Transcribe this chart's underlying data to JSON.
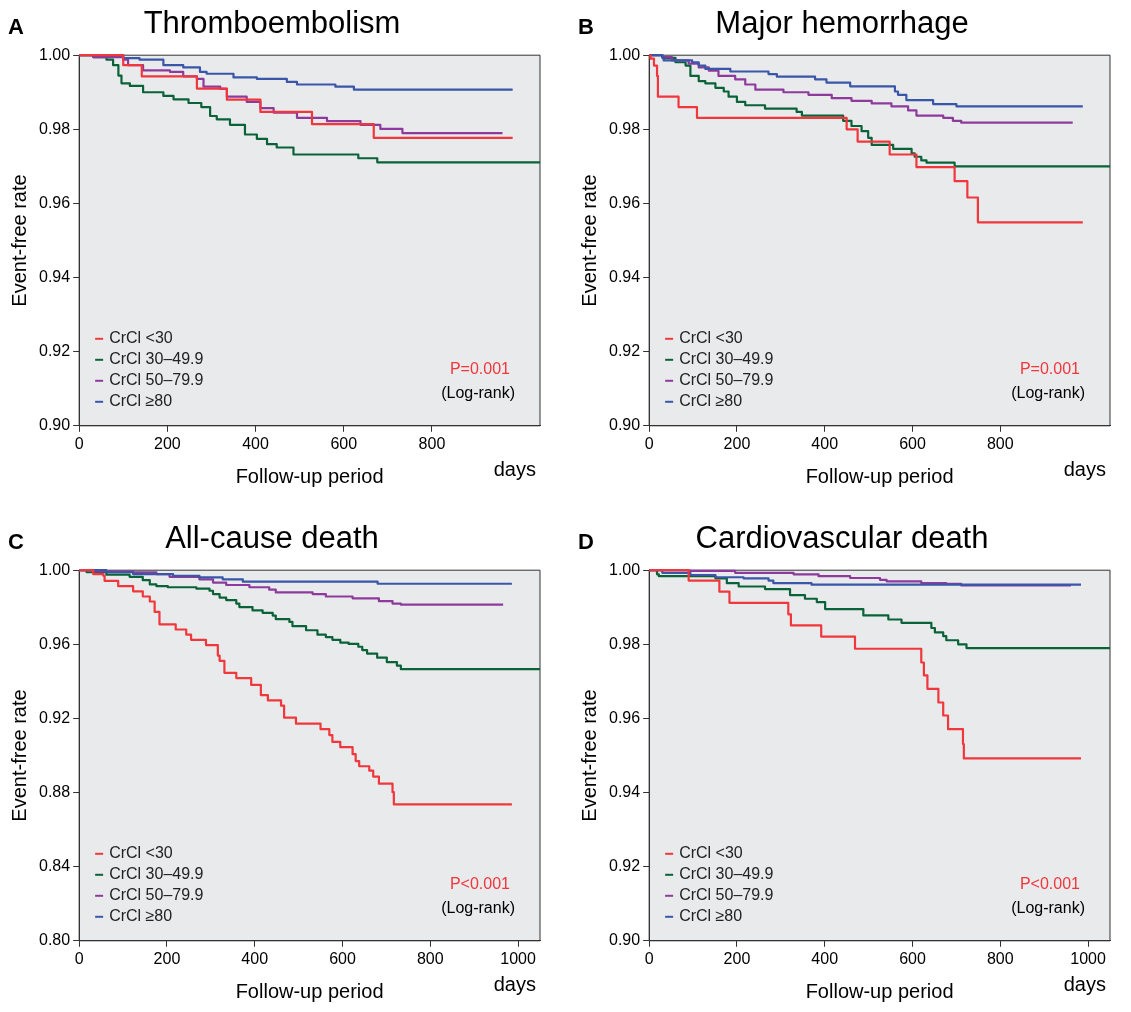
{
  "chart_data": [
    {
      "type": "step",
      "title": "Thromboembolism",
      "xlabel": "Follow-up period",
      "ylabel": "Event-free rate",
      "xlim": [
        0,
        1045
      ],
      "ylim": [
        0.9,
        1.0
      ],
      "xticks": [
        0,
        200,
        400,
        600,
        800
      ],
      "yticks": [
        {
          "value": 0.9,
          "label": "0.90"
        },
        {
          "value": 0.92,
          "label": "0.92"
        },
        {
          "value": 0.94,
          "label": "0.94"
        },
        {
          "value": 0.96,
          "label": "0.96"
        },
        {
          "value": 0.98,
          "label": "0.98"
        },
        {
          "value": 1.0,
          "label": "1.00"
        }
      ],
      "grid": false,
      "legend": "bottom left",
      "marker": "none",
      "line_style": "solid",
      "annotations": [
        "A",
        "P=0.001",
        "(Log-rank)",
        "days"
      ],
      "series": [
        {
          "name": "CrCl <30",
          "color": "#f0373c",
          "x": [
            0,
            100,
            142,
            267,
            335,
            411,
            528,
            668,
            983
          ],
          "values": [
            1.0,
            0.9973,
            0.9943,
            0.991,
            0.988,
            0.9847,
            0.9814,
            0.9777,
            0.9777
          ]
        },
        {
          "name": "CrCl 30–49.9",
          "color": "#0a6338",
          "x": [
            0,
            32,
            62,
            77,
            89,
            96,
            115,
            145,
            191,
            214,
            248,
            277,
            297,
            312,
            342,
            376,
            403,
            426,
            448,
            486,
            633,
            676,
            1045
          ],
          "values": [
            1.0,
            0.9995,
            0.9988,
            0.9973,
            0.9945,
            0.9924,
            0.9917,
            0.99,
            0.989,
            0.9881,
            0.9871,
            0.986,
            0.9836,
            0.9827,
            0.9812,
            0.9786,
            0.9774,
            0.976,
            0.9751,
            0.9732,
            0.9722,
            0.9711,
            0.9711
          ]
        },
        {
          "name": "CrCl 50–79.9",
          "color": "#8e3a9c",
          "x": [
            0,
            32,
            100,
            111,
            145,
            206,
            236,
            267,
            282,
            320,
            335,
            380,
            411,
            441,
            494,
            562,
            638,
            683,
            733,
            960
          ],
          "values": [
            1.0,
            0.9995,
            0.9988,
            0.9973,
            0.9959,
            0.9955,
            0.9943,
            0.9936,
            0.9915,
            0.9909,
            0.9888,
            0.9874,
            0.9857,
            0.9845,
            0.9831,
            0.9822,
            0.9812,
            0.9801,
            0.979,
            0.979
          ]
        },
        {
          "name": "CrCl ≥80",
          "color": "#3a56a8",
          "x": [
            0,
            100,
            137,
            191,
            236,
            274,
            289,
            350,
            403,
            471,
            494,
            581,
            623,
            725,
            983
          ],
          "values": [
            1.0,
            0.9992,
            0.9988,
            0.9973,
            0.9967,
            0.9955,
            0.995,
            0.994,
            0.9936,
            0.9928,
            0.9921,
            0.9915,
            0.9907,
            0.9907,
            0.9907
          ]
        }
      ]
    },
    {
      "type": "step",
      "title": "Major hemorrhage",
      "xlabel": "Follow-up period",
      "ylabel": "Event-free rate",
      "xlim": [
        0,
        1050
      ],
      "ylim": [
        0.9,
        1.0
      ],
      "xticks": [
        0,
        200,
        400,
        600,
        800
      ],
      "yticks": [
        {
          "value": 0.9,
          "label": "0.90"
        },
        {
          "value": 0.92,
          "label": "0.92"
        },
        {
          "value": 0.94,
          "label": "0.94"
        },
        {
          "value": 0.96,
          "label": "0.96"
        },
        {
          "value": 0.98,
          "label": "0.98"
        },
        {
          "value": 1.0,
          "label": "1.00"
        }
      ],
      "grid": false,
      "legend": "bottom left",
      "marker": "none",
      "line_style": "solid",
      "annotations": [
        "B",
        "P=0.001",
        "(Log-rank)",
        "days"
      ],
      "series": [
        {
          "name": "CrCl <30",
          "color": "#f0373c",
          "x": [
            0,
            3,
            11,
            18,
            20,
            67,
            109,
            450,
            475,
            548,
            609,
            696,
            725,
            749,
            988
          ],
          "values": [
            1.0,
            0.9991,
            0.9972,
            0.9944,
            0.9888,
            0.986,
            0.9831,
            0.98,
            0.9767,
            0.9732,
            0.9698,
            0.966,
            0.9616,
            0.9549,
            0.9549
          ]
        },
        {
          "name": "CrCl 30–49.9",
          "color": "#0a6338",
          "x": [
            0,
            30,
            60,
            83,
            94,
            113,
            128,
            151,
            170,
            181,
            200,
            219,
            264,
            336,
            348,
            442,
            461,
            484,
            499,
            507,
            556,
            598,
            605,
            620,
            632,
            696,
            1050
          ],
          "values": [
            1.0,
            0.9993,
            0.9981,
            0.9972,
            0.9944,
            0.993,
            0.9924,
            0.9912,
            0.9902,
            0.9888,
            0.9874,
            0.9865,
            0.9856,
            0.9847,
            0.9837,
            0.9823,
            0.9809,
            0.9795,
            0.9777,
            0.9758,
            0.9747,
            0.9735,
            0.9726,
            0.9716,
            0.971,
            0.97,
            0.97
          ]
        },
        {
          "name": "CrCl 50–79.9",
          "color": "#8e3a9c",
          "x": [
            0,
            30,
            52,
            90,
            113,
            136,
            158,
            196,
            219,
            242,
            306,
            363,
            416,
            461,
            507,
            552,
            590,
            609,
            670,
            692,
            711,
            965
          ],
          "values": [
            1.0,
            0.9995,
            0.9986,
            0.9977,
            0.9967,
            0.9958,
            0.9944,
            0.9935,
            0.9921,
            0.9907,
            0.99,
            0.9893,
            0.9884,
            0.9877,
            0.987,
            0.9862,
            0.9851,
            0.9837,
            0.9831,
            0.9823,
            0.9818,
            0.9818
          ]
        },
        {
          "name": "CrCl ≥80",
          "color": "#3a56a8",
          "x": [
            0,
            30,
            33,
            98,
            113,
            128,
            185,
            272,
            291,
            378,
            404,
            458,
            560,
            567,
            586,
            647,
            700,
            988
          ],
          "values": [
            1.0,
            0.9995,
            0.9986,
            0.9981,
            0.9972,
            0.9963,
            0.9956,
            0.9949,
            0.9942,
            0.9935,
            0.9926,
            0.9916,
            0.9902,
            0.9893,
            0.9879,
            0.9868,
            0.9862,
            0.9862
          ]
        }
      ]
    },
    {
      "type": "step",
      "title": "All-cause death",
      "xlabel": "Follow-up period",
      "ylabel": "Event-free rate",
      "xlim": [
        0,
        1050
      ],
      "ylim": [
        0.8,
        1.0
      ],
      "xticks": [
        0,
        200,
        400,
        600,
        800,
        1000
      ],
      "yticks": [
        {
          "value": 0.8,
          "label": "0.80"
        },
        {
          "value": 0.84,
          "label": "0.84"
        },
        {
          "value": 0.88,
          "label": "0.88"
        },
        {
          "value": 0.92,
          "label": "0.92"
        },
        {
          "value": 0.96,
          "label": "0.96"
        },
        {
          "value": 1.0,
          "label": "1.00"
        }
      ],
      "grid": false,
      "legend": "bottom left",
      "marker": "none",
      "line_style": "solid",
      "annotations": [
        "C",
        "P<0.001",
        "(Log-rank)",
        "days"
      ],
      "series": [
        {
          "name": "CrCl <30",
          "color": "#f0373c",
          "x": [
            0,
            32,
            55,
            58,
            89,
            123,
            145,
            161,
            172,
            183,
            220,
            244,
            255,
            289,
            316,
            320,
            331,
            358,
            392,
            414,
            430,
            460,
            467,
            494,
            550,
            570,
            577,
            595,
            623,
            630,
            638,
            661,
            670,
            683,
            714,
            717,
            986
          ],
          "values": [
            1.0,
            0.9979,
            0.997,
            0.9942,
            0.9914,
            0.9886,
            0.9858,
            0.9831,
            0.9775,
            0.9708,
            0.968,
            0.9652,
            0.9624,
            0.9596,
            0.9539,
            0.9511,
            0.9446,
            0.9418,
            0.9381,
            0.9326,
            0.9297,
            0.9269,
            0.9204,
            0.9172,
            0.9142,
            0.911,
            0.9073,
            0.9045,
            0.9007,
            0.897,
            0.8942,
            0.8918,
            0.8886,
            0.8848,
            0.8802,
            0.8736,
            0.8736
          ]
        },
        {
          "name": "CrCl 30–49.9",
          "color": "#0a6338",
          "x": [
            0,
            17,
            62,
            115,
            145,
            161,
            176,
            202,
            267,
            297,
            305,
            320,
            335,
            358,
            365,
            395,
            418,
            441,
            448,
            479,
            486,
            517,
            543,
            562,
            577,
            595,
            614,
            636,
            645,
            656,
            679,
            701,
            724,
            733,
            1050
          ],
          "values": [
            1.0,
            0.9989,
            0.9976,
            0.9964,
            0.9946,
            0.9923,
            0.9914,
            0.9908,
            0.9901,
            0.9889,
            0.9871,
            0.9852,
            0.9839,
            0.982,
            0.9801,
            0.9783,
            0.977,
            0.9755,
            0.9736,
            0.9721,
            0.9698,
            0.9676,
            0.9652,
            0.9639,
            0.9624,
            0.9609,
            0.9602,
            0.9587,
            0.9569,
            0.955,
            0.9528,
            0.9504,
            0.9485,
            0.9466,
            0.9466
          ]
        },
        {
          "name": "CrCl 50–79.9",
          "color": "#8e3a9c",
          "x": [
            0,
            32,
            123,
            176,
            206,
            274,
            305,
            335,
            388,
            433,
            448,
            532,
            562,
            623,
            683,
            714,
            733,
            966
          ],
          "values": [
            1.0,
            0.9994,
            0.9989,
            0.9979,
            0.9964,
            0.9951,
            0.9933,
            0.992,
            0.9908,
            0.9895,
            0.988,
            0.9871,
            0.9858,
            0.9848,
            0.9833,
            0.982,
            0.9814,
            0.9814
          ]
        },
        {
          "name": "CrCl ≥80",
          "color": "#3a56a8",
          "x": [
            0,
            62,
            123,
            214,
            274,
            327,
            373,
            680,
            986
          ],
          "values": [
            1.0,
            0.9989,
            0.9979,
            0.997,
            0.9961,
            0.9951,
            0.9938,
            0.9927,
            0.9927
          ]
        }
      ]
    },
    {
      "type": "step",
      "title": "Cardiovascular death",
      "xlabel": "Follow-up period",
      "ylabel": "Event-free rate",
      "xlim": [
        0,
        1050
      ],
      "ylim": [
        0.9,
        1.0
      ],
      "xticks": [
        0,
        200,
        400,
        600,
        800,
        1000
      ],
      "yticks": [
        {
          "value": 0.9,
          "label": "0.90"
        },
        {
          "value": 0.92,
          "label": "0.92"
        },
        {
          "value": 0.94,
          "label": "0.94"
        },
        {
          "value": 0.96,
          "label": "0.96"
        },
        {
          "value": 0.98,
          "label": "0.98"
        },
        {
          "value": 1.0,
          "label": "1.00"
        }
      ],
      "grid": false,
      "legend": "bottom left",
      "marker": "none",
      "line_style": "solid",
      "annotations": [
        "D",
        "P<0.001",
        "(Log-rank)",
        "days"
      ],
      "series": [
        {
          "name": "CrCl <30",
          "color": "#f0373c",
          "x": [
            0,
            90,
            160,
            183,
            317,
            323,
            392,
            469,
            620,
            626,
            634,
            659,
            670,
            681,
            715,
            717,
            984
          ],
          "values": [
            1.0,
            0.9972,
            0.9942,
            0.9912,
            0.9881,
            0.9851,
            0.9821,
            0.9788,
            0.9751,
            0.9716,
            0.968,
            0.9643,
            0.9608,
            0.9571,
            0.9531,
            0.9492,
            0.9492
          ]
        },
        {
          "name": "CrCl 30–49.9",
          "color": "#0a6338",
          "x": [
            0,
            18,
            22,
            151,
            177,
            204,
            264,
            321,
            355,
            382,
            401,
            488,
            545,
            575,
            643,
            651,
            670,
            677,
            704,
            723,
            1050
          ],
          "values": [
            1.0,
            0.9989,
            0.9984,
            0.9978,
            0.9965,
            0.9956,
            0.9949,
            0.9933,
            0.9923,
            0.9914,
            0.9895,
            0.9878,
            0.9867,
            0.9858,
            0.9844,
            0.9832,
            0.9822,
            0.9811,
            0.98,
            0.979,
            0.979
          ]
        },
        {
          "name": "CrCl 50–79.9",
          "color": "#8e3a9c",
          "x": [
            0,
            90,
            196,
            329,
            386,
            458,
            526,
            541,
            620,
            677,
            711,
            961
          ],
          "values": [
            1.0,
            0.9998,
            0.9993,
            0.9989,
            0.9984,
            0.9979,
            0.9974,
            0.997,
            0.9965,
            0.9963,
            0.9959,
            0.9959
          ]
        },
        {
          "name": "CrCl ≥80",
          "color": "#3a56a8",
          "x": [
            0,
            30,
            94,
            151,
            215,
            272,
            283,
            370,
            984
          ],
          "values": [
            1.0,
            0.9993,
            0.9987,
            0.9981,
            0.9978,
            0.9972,
            0.9965,
            0.9961,
            0.9961
          ]
        }
      ]
    }
  ]
}
